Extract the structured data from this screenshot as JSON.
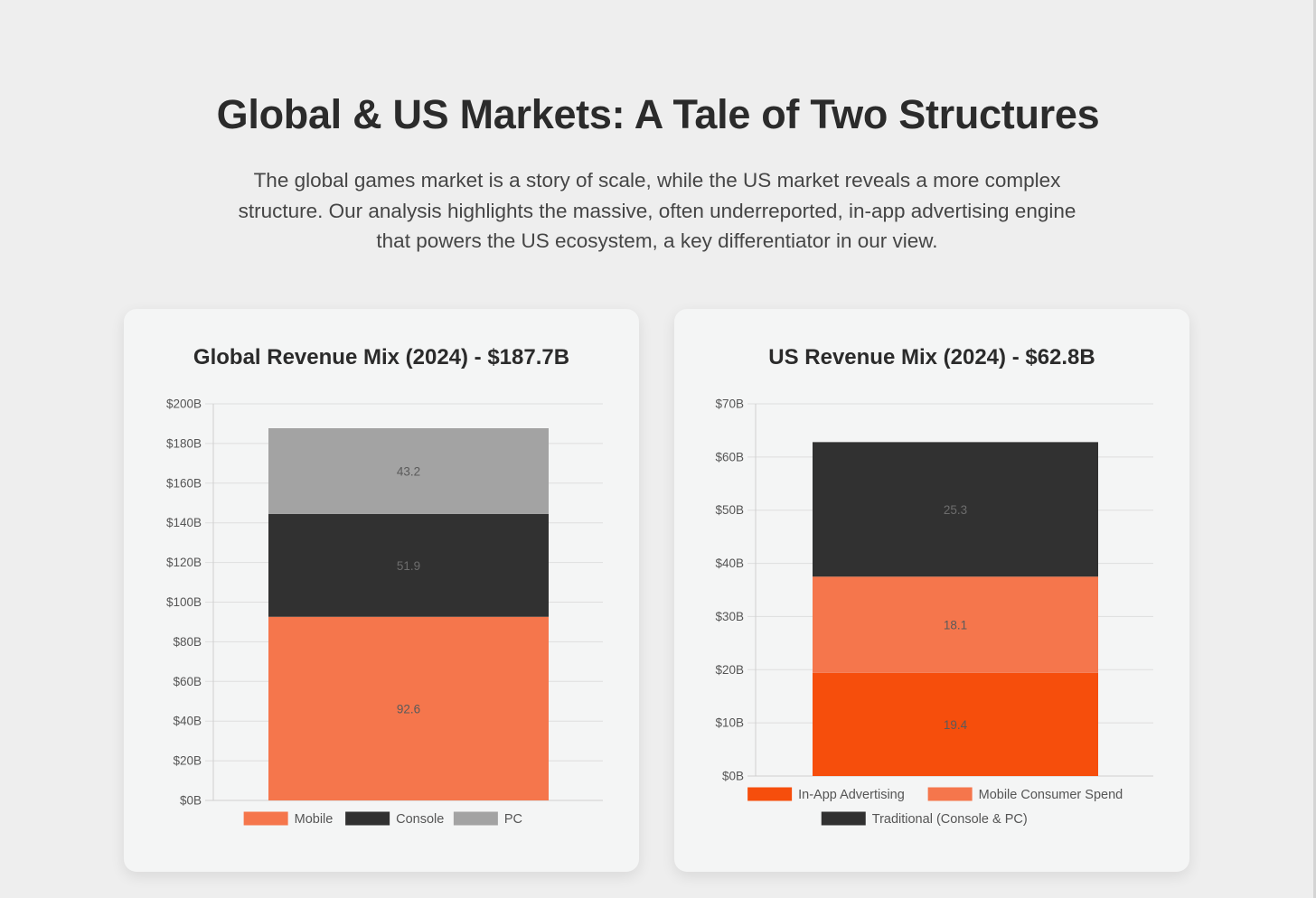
{
  "page": {
    "title": "Global & US Markets: A Tale of Two Structures",
    "intro": "The global games market is a story of scale, while the US market reveals a more complex structure. Our analysis highlights the massive, often underreported, in-app advertising engine that powers the US ecosystem, a key differentiator in our view."
  },
  "chart_data": [
    {
      "type": "bar",
      "stacked": true,
      "title": "Global Revenue Mix (2024) - $187.7B",
      "categories": [
        ""
      ],
      "series": [
        {
          "name": "Mobile",
          "values": [
            92.6
          ],
          "color": "#f5764c"
        },
        {
          "name": "Console",
          "values": [
            51.9
          ],
          "color": "#313131"
        },
        {
          "name": "PC",
          "values": [
            43.2
          ],
          "color": "#a3a3a3"
        }
      ],
      "ylim": [
        0,
        200
      ],
      "yticks": [
        "$0B",
        "$20B",
        "$40B",
        "$60B",
        "$80B",
        "$100B",
        "$120B",
        "$140B",
        "$160B",
        "$180B",
        "$200B"
      ],
      "grid": true,
      "legend": "bottom"
    },
    {
      "type": "bar",
      "stacked": true,
      "title": "US Revenue Mix (2024) - $62.8B",
      "categories": [
        ""
      ],
      "series": [
        {
          "name": "In-App Advertising",
          "values": [
            19.4
          ],
          "color": "#f64e0c"
        },
        {
          "name": "Mobile Consumer Spend",
          "values": [
            18.1
          ],
          "color": "#f5764c"
        },
        {
          "name": "Traditional (Console & PC)",
          "values": [
            25.3
          ],
          "color": "#313131"
        }
      ],
      "ylim": [
        0,
        70
      ],
      "yticks": [
        "$0B",
        "$10B",
        "$20B",
        "$30B",
        "$40B",
        "$50B",
        "$60B",
        "$70B"
      ],
      "grid": true,
      "legend": "bottom"
    }
  ]
}
